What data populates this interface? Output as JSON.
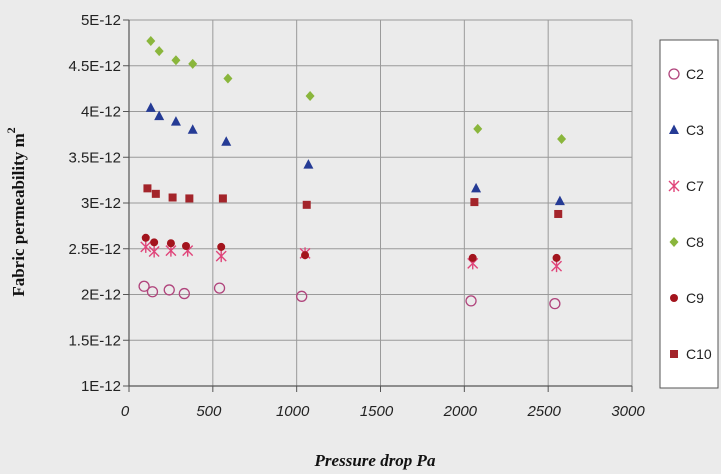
{
  "chart_data": {
    "type": "scatter",
    "title": "",
    "xlabel": "Pressure drop Pa",
    "ylabel": "Fabric permeability m",
    "ylabel_sup": "2",
    "xlim": [
      0,
      3000
    ],
    "ylim": [
      1e-12,
      5e-12
    ],
    "x_ticks": [
      0,
      500,
      1000,
      1500,
      2000,
      2500,
      3000
    ],
    "x_tick_labels": [
      "0",
      "500",
      "1000",
      "1500",
      "2000",
      "2500",
      "3000"
    ],
    "y_ticks": [
      1e-12,
      1.5e-12,
      2e-12,
      2.5e-12,
      3e-12,
      3.5e-12,
      4e-12,
      4.5e-12,
      5e-12
    ],
    "y_tick_labels": [
      "1E-12",
      "1.5E-12",
      "2E-12",
      "2.5E-12",
      "3E-12",
      "3.5E-12",
      "4E-12",
      "4.5E-12",
      "5E-12"
    ],
    "grid": true,
    "legend_position": "right",
    "series": [
      {
        "name": "C2",
        "marker": "open-circle",
        "color": "#b0447c",
        "x": [
          90,
          140,
          240,
          330,
          540,
          1030,
          2040,
          2540
        ],
        "y": [
          2.09e-12,
          2.03e-12,
          2.05e-12,
          2.01e-12,
          2.07e-12,
          1.98e-12,
          1.93e-12,
          1.9e-12
        ]
      },
      {
        "name": "C3",
        "marker": "triangle",
        "color": "#253b95",
        "x": [
          130,
          180,
          280,
          380,
          580,
          1070,
          2070,
          2570
        ],
        "y": [
          4.04e-12,
          3.95e-12,
          3.89e-12,
          3.8e-12,
          3.67e-12,
          3.42e-12,
          3.16e-12,
          3.02e-12
        ]
      },
      {
        "name": "C7",
        "marker": "asterisk",
        "color": "#e0457a",
        "x": [
          100,
          150,
          250,
          350,
          550,
          1050,
          2050,
          2550
        ],
        "y": [
          2.52e-12,
          2.47e-12,
          2.48e-12,
          2.48e-12,
          2.42e-12,
          2.45e-12,
          2.34e-12,
          2.31e-12
        ]
      },
      {
        "name": "C8",
        "marker": "diamond",
        "color": "#8ab63c",
        "x": [
          130,
          180,
          280,
          380,
          590,
          1080,
          2080,
          2580
        ],
        "y": [
          4.77e-12,
          4.66e-12,
          4.56e-12,
          4.52e-12,
          4.36e-12,
          4.17e-12,
          3.81e-12,
          3.7e-12
        ]
      },
      {
        "name": "C9",
        "marker": "filled-circle",
        "color": "#a3141d",
        "x": [
          100,
          150,
          250,
          340,
          550,
          1050,
          2050,
          2550
        ],
        "y": [
          2.62e-12,
          2.57e-12,
          2.56e-12,
          2.53e-12,
          2.52e-12,
          2.43e-12,
          2.4e-12,
          2.4e-12
        ]
      },
      {
        "name": "C10",
        "marker": "square",
        "color": "#a3242a",
        "x": [
          110,
          160,
          260,
          360,
          560,
          1060,
          2060,
          2560
        ],
        "y": [
          3.16e-12,
          3.1e-12,
          3.06e-12,
          3.05e-12,
          3.05e-12,
          2.98e-12,
          3.01e-12,
          2.88e-12
        ]
      }
    ]
  }
}
